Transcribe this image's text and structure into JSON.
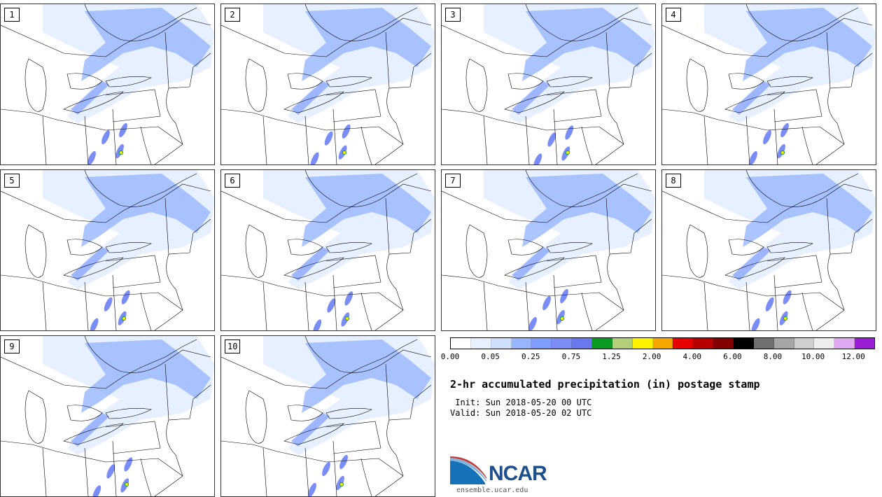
{
  "panels": [
    {
      "label": "1"
    },
    {
      "label": "2"
    },
    {
      "label": "3"
    },
    {
      "label": "4"
    },
    {
      "label": "5"
    },
    {
      "label": "6"
    },
    {
      "label": "7"
    },
    {
      "label": "8"
    },
    {
      "label": "9"
    },
    {
      "label": "10"
    }
  ],
  "colorbar": {
    "colors": [
      "#ffffff",
      "#e6f0ff",
      "#cfe0ff",
      "#98b6ff",
      "#7e9dff",
      "#7a8cf5",
      "#6a78ee",
      "#0b9a22",
      "#b3cf7a",
      "#fff200",
      "#f7a600",
      "#e60000",
      "#b80000",
      "#820000",
      "#000000",
      "#707070",
      "#a6a6a6",
      "#cfcfcf",
      "#eeeeee",
      "#dfaaf0",
      "#9a1ed6"
    ],
    "tick_labels": [
      "0.00",
      "0.05",
      "0.25",
      "0.75",
      "1.25",
      "2.00",
      "4.00",
      "6.00",
      "8.00",
      "10.00",
      "12.00"
    ]
  },
  "title": "2-hr accumulated precipitation (in) postage stamp",
  "init_line": " Init: Sun 2018-05-20 00 UTC",
  "valid_line": "Valid: Sun 2018-05-20 02 UTC",
  "logo": {
    "text": "NCAR",
    "url": "ensemble.ucar.edu"
  }
}
